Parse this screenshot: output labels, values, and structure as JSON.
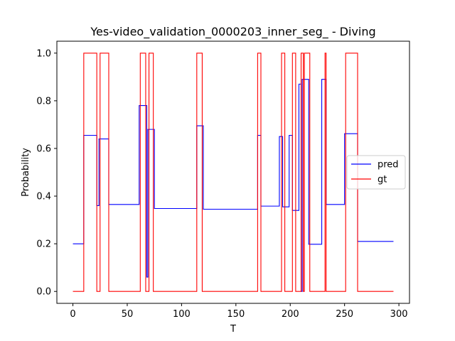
{
  "chart_data": {
    "type": "line",
    "title": "Yes-video_validation_0000203_inner_seg_ - Diving",
    "xlabel": "T",
    "ylabel": "Probability",
    "xlim": [
      -14.75,
      309.75
    ],
    "ylim": [
      -0.05,
      1.05
    ],
    "xticks": [
      0,
      50,
      100,
      150,
      200,
      250,
      300
    ],
    "yticks": [
      0.0,
      0.2,
      0.4,
      0.6,
      0.8,
      1.0
    ],
    "xtick_labels": [
      "0",
      "50",
      "100",
      "150",
      "200",
      "250",
      "300"
    ],
    "ytick_labels": [
      "0.0",
      "0.2",
      "0.4",
      "0.6",
      "0.8",
      "1.0"
    ],
    "legend": {
      "position": "center-right"
    },
    "series": [
      {
        "name": "pred",
        "color": "#0000ff",
        "step": true,
        "x": [
          0,
          10,
          22,
          24,
          25,
          33,
          61,
          67,
          68,
          69,
          71,
          75,
          114,
          119,
          120,
          170,
          173,
          190,
          193,
          199,
          202,
          205,
          208,
          210,
          211,
          212,
          214,
          217,
          218,
          219,
          229,
          232,
          233,
          250,
          261,
          262,
          263,
          295
        ],
        "y": [
          0.2,
          0.655,
          0.36,
          0.64,
          0.64,
          0.365,
          0.78,
          0.78,
          0.06,
          0.68,
          0.68,
          0.348,
          0.695,
          0.695,
          0.345,
          0.655,
          0.358,
          0.65,
          0.355,
          0.655,
          0.34,
          0.34,
          0.87,
          0.0,
          0.89,
          0.89,
          0.89,
          0.198,
          0.198,
          0.198,
          0.89,
          0.89,
          0.365,
          0.662,
          0.662,
          0.21,
          0.21,
          0.21
        ]
      },
      {
        "name": "gt",
        "color": "#ff0000",
        "step": true,
        "x": [
          0,
          10,
          22,
          25,
          33,
          62,
          67,
          70,
          74,
          114,
          119,
          170,
          173,
          192,
          195,
          199,
          202,
          205,
          209,
          210,
          212,
          213,
          214,
          218,
          229,
          230,
          232,
          233,
          251,
          262,
          295
        ],
        "y": [
          0,
          1,
          0,
          1,
          0,
          1,
          0,
          1,
          0,
          1,
          0,
          1,
          0,
          1,
          0,
          0,
          1,
          0,
          0,
          1,
          0,
          1,
          1,
          0,
          0,
          0,
          1,
          0,
          1,
          0,
          0
        ]
      }
    ]
  }
}
